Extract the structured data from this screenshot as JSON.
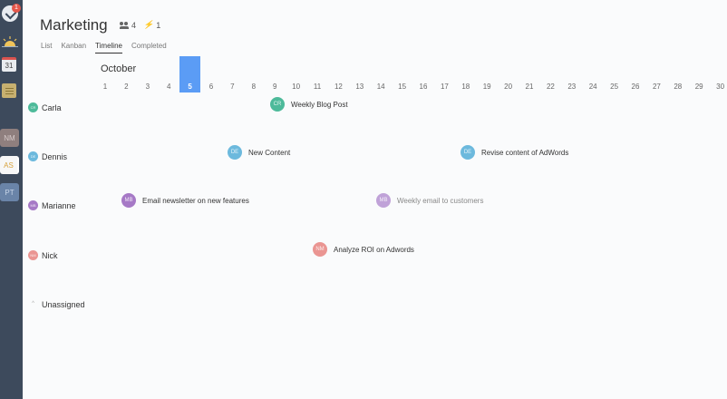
{
  "sidebar": {
    "notification_count": "1",
    "calendar_day": "31",
    "workspaces": [
      "NM",
      "AS",
      "PT"
    ]
  },
  "header": {
    "title": "Marketing",
    "member_count": "4",
    "activity_count": "1"
  },
  "tabs": [
    "List",
    "Kanban",
    "Timeline",
    "Completed"
  ],
  "active_tab": "Timeline",
  "timeline": {
    "month": "October",
    "days": [
      "1",
      "2",
      "3",
      "4",
      "5",
      "6",
      "7",
      "8",
      "9",
      "10",
      "11",
      "12",
      "13",
      "14",
      "15",
      "16",
      "17",
      "18",
      "19",
      "20",
      "21",
      "22",
      "23",
      "24",
      "25",
      "26",
      "27",
      "28",
      "29",
      "30"
    ],
    "today": "5"
  },
  "people": [
    {
      "name": "Carla",
      "initials": "CR",
      "color": "#4dba9a"
    },
    {
      "name": "Dennis",
      "initials": "DE",
      "color": "#6cb9dd"
    },
    {
      "name": "Marianne",
      "initials": "MB",
      "color": "#a679c6"
    },
    {
      "name": "Nick",
      "initials": "NM",
      "color": "#ea9592"
    },
    {
      "name": "Unassigned",
      "initials": "",
      "color": ""
    }
  ],
  "tasks": [
    {
      "title": "Weekly Blog Post",
      "initials": "CR",
      "color": "#4dba9a"
    },
    {
      "title": "New Content",
      "initials": "DE",
      "color": "#6cb9dd"
    },
    {
      "title": "Revise content of AdWords",
      "initials": "DE",
      "color": "#6cb9dd"
    },
    {
      "title": "Email newsletter on new features",
      "initials": "MB",
      "color": "#a679c6"
    },
    {
      "title": "Weekly email to customers",
      "initials": "MB",
      "color": "#c0a2d8"
    },
    {
      "title": "Analyze ROI on Adwords",
      "initials": "NM",
      "color": "#ea9592"
    }
  ]
}
